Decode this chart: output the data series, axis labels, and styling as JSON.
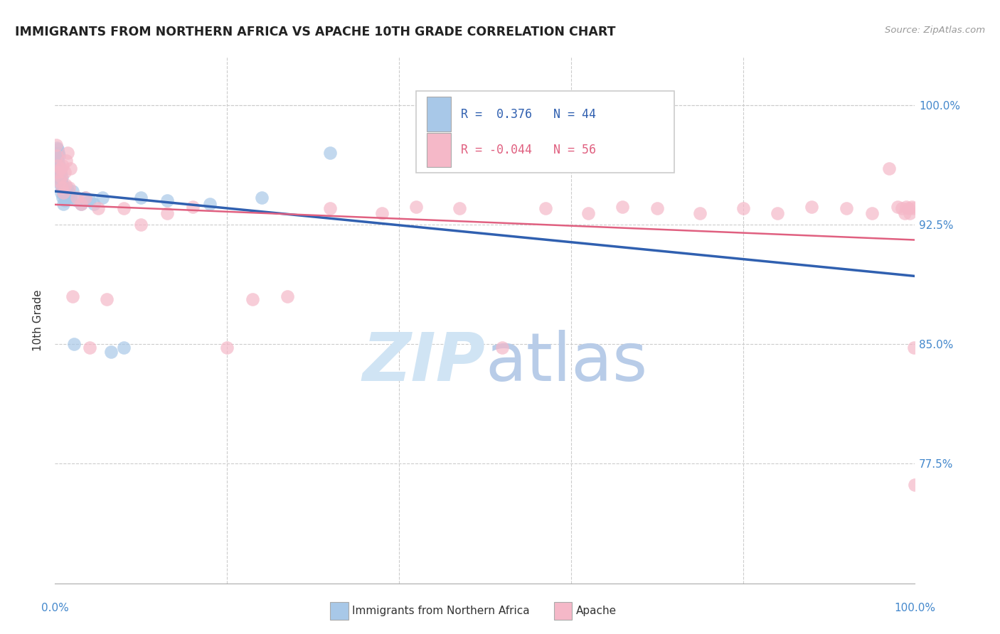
{
  "title": "IMMIGRANTS FROM NORTHERN AFRICA VS APACHE 10TH GRADE CORRELATION CHART",
  "source": "Source: ZipAtlas.com",
  "ylabel": "10th Grade",
  "ymin": 0.7,
  "ymax": 1.03,
  "xmin": 0.0,
  "xmax": 1.0,
  "blue_R": 0.376,
  "blue_N": 44,
  "pink_R": -0.044,
  "pink_N": 56,
  "blue_color": "#a8c8e8",
  "pink_color": "#f5b8c8",
  "blue_edge_color": "#a8c8e8",
  "pink_edge_color": "#f5b8c8",
  "blue_line_color": "#3060b0",
  "pink_line_color": "#e06080",
  "watermark_color": "#d0e4f4",
  "ytick_positions": [
    0.725,
    0.75,
    0.775,
    0.8,
    0.825,
    0.85,
    0.875,
    0.9,
    0.925,
    0.95,
    0.975,
    1.0
  ],
  "ytick_labels_right": [
    "",
    "",
    "77.5%",
    "",
    "",
    "85.0%",
    "",
    "",
    "92.5%",
    "",
    "",
    "100.0%"
  ],
  "legend_label_blue": "Immigrants from Northern Africa",
  "legend_label_pink": "Apache",
  "blue_x": [
    0.001,
    0.002,
    0.002,
    0.003,
    0.003,
    0.003,
    0.004,
    0.004,
    0.004,
    0.005,
    0.005,
    0.005,
    0.006,
    0.006,
    0.007,
    0.007,
    0.008,
    0.008,
    0.009,
    0.009,
    0.01,
    0.01,
    0.011,
    0.012,
    0.013,
    0.014,
    0.015,
    0.016,
    0.018,
    0.02,
    0.022,
    0.025,
    0.03,
    0.035,
    0.04,
    0.045,
    0.055,
    0.065,
    0.08,
    0.1,
    0.13,
    0.18,
    0.24,
    0.32
  ],
  "blue_y": [
    0.97,
    0.968,
    0.973,
    0.965,
    0.96,
    0.972,
    0.958,
    0.963,
    0.97,
    0.955,
    0.962,
    0.968,
    0.95,
    0.958,
    0.945,
    0.952,
    0.948,
    0.955,
    0.942,
    0.95,
    0.938,
    0.945,
    0.94,
    0.942,
    0.945,
    0.948,
    0.942,
    0.945,
    0.942,
    0.946,
    0.85,
    0.94,
    0.938,
    0.942,
    0.94,
    0.938,
    0.942,
    0.845,
    0.848,
    0.942,
    0.94,
    0.938,
    0.942,
    0.97
  ],
  "pink_x": [
    0.001,
    0.002,
    0.003,
    0.004,
    0.005,
    0.006,
    0.007,
    0.008,
    0.009,
    0.01,
    0.011,
    0.012,
    0.013,
    0.015,
    0.016,
    0.018,
    0.02,
    0.025,
    0.03,
    0.035,
    0.04,
    0.05,
    0.06,
    0.08,
    0.1,
    0.13,
    0.16,
    0.2,
    0.23,
    0.27,
    0.32,
    0.38,
    0.42,
    0.47,
    0.52,
    0.57,
    0.62,
    0.66,
    0.7,
    0.75,
    0.8,
    0.84,
    0.88,
    0.92,
    0.95,
    0.97,
    0.98,
    0.985,
    0.988,
    0.99,
    0.992,
    0.994,
    0.996,
    0.998,
    0.999,
    1.0
  ],
  "pink_y": [
    0.975,
    0.968,
    0.962,
    0.958,
    0.952,
    0.96,
    0.955,
    0.948,
    0.962,
    0.945,
    0.958,
    0.95,
    0.965,
    0.97,
    0.948,
    0.96,
    0.88,
    0.942,
    0.938,
    0.942,
    0.848,
    0.935,
    0.878,
    0.935,
    0.925,
    0.932,
    0.936,
    0.848,
    0.878,
    0.88,
    0.935,
    0.932,
    0.936,
    0.935,
    0.848,
    0.935,
    0.932,
    0.936,
    0.935,
    0.932,
    0.935,
    0.932,
    0.936,
    0.935,
    0.932,
    0.96,
    0.936,
    0.935,
    0.932,
    0.936,
    0.935,
    0.932,
    0.936,
    0.935,
    0.848,
    0.762
  ]
}
